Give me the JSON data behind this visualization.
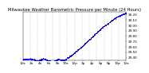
{
  "title": "Milwaukee Weather Barometric Pressure per Minute (24 Hours)",
  "title_fontsize": 3.8,
  "bg_color": "#ffffff",
  "dot_color": "#0000ff",
  "dot_size": 0.4,
  "grid_color": "#aaaaaa",
  "tick_fontsize": 3.0,
  "ylim": [
    29.35,
    30.25
  ],
  "xlim": [
    0,
    1440
  ],
  "ylabel_values": [
    29.4,
    29.5,
    29.6,
    29.7,
    29.8,
    29.9,
    30.0,
    30.1,
    30.2
  ],
  "n_points": 1440,
  "seed": 42
}
